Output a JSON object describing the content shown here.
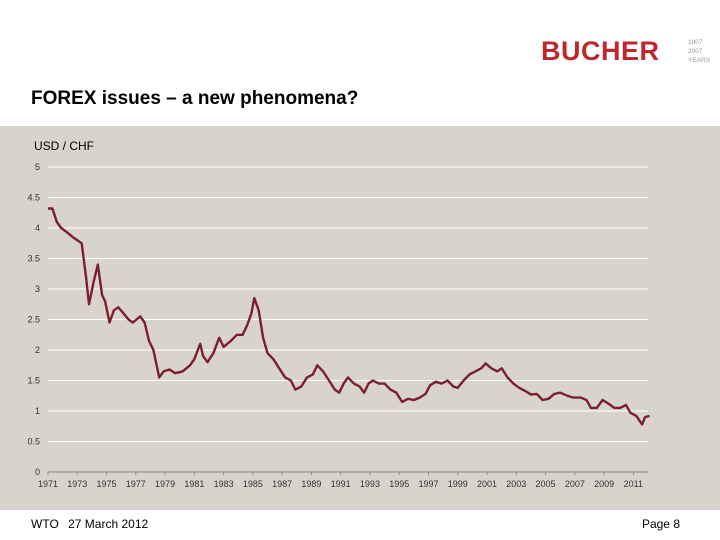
{
  "header": {
    "logo_text": "BUCHER",
    "logo_badge_lines": [
      "1807",
      "2007",
      "YEARS"
    ],
    "title": "FOREX issues – a new phenomena?"
  },
  "footer": {
    "org": "WTO",
    "date": "27 March 2012",
    "page": "Page 8"
  },
  "colors": {
    "line": "#7b1f2b",
    "logo": "#c0272d",
    "panel": "#d8d4cc",
    "grid": "#ffffff"
  },
  "chart_data": {
    "type": "line",
    "title": "USD / CHF",
    "xlabel": "",
    "ylabel": "",
    "ylim": [
      0,
      5
    ],
    "xlim": [
      1971,
      2012
    ],
    "grid": true,
    "legend": "none",
    "yticks": [
      "0",
      "0.5",
      "1",
      "1.5",
      "2",
      "2.5",
      "3",
      "3.5",
      "4",
      "4.5",
      "5"
    ],
    "xticks": [
      "1971",
      "1973",
      "1975",
      "1977",
      "1979",
      "1981",
      "1983",
      "1985",
      "1987",
      "1989",
      "1991",
      "1993",
      "1995",
      "1997",
      "1999",
      "2001",
      "2003",
      "2005",
      "2007",
      "2009",
      "2011"
    ],
    "series": [
      {
        "values": [
          [
            1971.0,
            4.32
          ],
          [
            1971.3,
            4.32
          ],
          [
            1971.6,
            4.1
          ],
          [
            1971.9,
            4.0
          ],
          [
            1972.3,
            3.93
          ],
          [
            1972.7,
            3.85
          ],
          [
            1973.0,
            3.8
          ],
          [
            1973.3,
            3.75
          ],
          [
            1973.6,
            3.2
          ],
          [
            1973.8,
            2.75
          ],
          [
            1974.1,
            3.1
          ],
          [
            1974.4,
            3.4
          ],
          [
            1974.7,
            2.9
          ],
          [
            1974.9,
            2.8
          ],
          [
            1975.2,
            2.45
          ],
          [
            1975.5,
            2.65
          ],
          [
            1975.8,
            2.7
          ],
          [
            1976.1,
            2.62
          ],
          [
            1976.5,
            2.5
          ],
          [
            1976.8,
            2.45
          ],
          [
            1977.3,
            2.55
          ],
          [
            1977.6,
            2.45
          ],
          [
            1977.9,
            2.15
          ],
          [
            1978.2,
            2.0
          ],
          [
            1978.6,
            1.55
          ],
          [
            1978.9,
            1.65
          ],
          [
            1979.3,
            1.68
          ],
          [
            1979.7,
            1.62
          ],
          [
            1980.2,
            1.65
          ],
          [
            1980.7,
            1.75
          ],
          [
            1981.0,
            1.85
          ],
          [
            1981.4,
            2.1
          ],
          [
            1981.6,
            1.9
          ],
          [
            1981.9,
            1.8
          ],
          [
            1982.3,
            1.95
          ],
          [
            1982.7,
            2.2
          ],
          [
            1983.0,
            2.05
          ],
          [
            1983.5,
            2.15
          ],
          [
            1983.9,
            2.25
          ],
          [
            1984.3,
            2.25
          ],
          [
            1984.6,
            2.4
          ],
          [
            1984.9,
            2.6
          ],
          [
            1985.1,
            2.85
          ],
          [
            1985.4,
            2.65
          ],
          [
            1985.7,
            2.2
          ],
          [
            1986.0,
            1.95
          ],
          [
            1986.4,
            1.85
          ],
          [
            1986.8,
            1.7
          ],
          [
            1987.2,
            1.55
          ],
          [
            1987.6,
            1.5
          ],
          [
            1987.9,
            1.35
          ],
          [
            1988.3,
            1.4
          ],
          [
            1988.7,
            1.55
          ],
          [
            1989.1,
            1.6
          ],
          [
            1989.4,
            1.75
          ],
          [
            1989.8,
            1.65
          ],
          [
            1990.2,
            1.5
          ],
          [
            1990.6,
            1.35
          ],
          [
            1990.9,
            1.3
          ],
          [
            1991.2,
            1.45
          ],
          [
            1991.5,
            1.55
          ],
          [
            1991.9,
            1.45
          ],
          [
            1992.3,
            1.4
          ],
          [
            1992.6,
            1.3
          ],
          [
            1992.9,
            1.45
          ],
          [
            1993.2,
            1.5
          ],
          [
            1993.6,
            1.45
          ],
          [
            1994.0,
            1.45
          ],
          [
            1994.4,
            1.35
          ],
          [
            1994.8,
            1.3
          ],
          [
            1995.2,
            1.15
          ],
          [
            1995.6,
            1.2
          ],
          [
            1996.0,
            1.18
          ],
          [
            1996.4,
            1.22
          ],
          [
            1996.8,
            1.28
          ],
          [
            1997.1,
            1.42
          ],
          [
            1997.5,
            1.48
          ],
          [
            1997.9,
            1.45
          ],
          [
            1998.3,
            1.5
          ],
          [
            1998.7,
            1.4
          ],
          [
            1999.0,
            1.38
          ],
          [
            1999.4,
            1.5
          ],
          [
            1999.8,
            1.6
          ],
          [
            2000.2,
            1.65
          ],
          [
            2000.6,
            1.7
          ],
          [
            2000.9,
            1.78
          ],
          [
            2001.3,
            1.7
          ],
          [
            2001.7,
            1.65
          ],
          [
            2002.0,
            1.7
          ],
          [
            2002.4,
            1.55
          ],
          [
            2002.8,
            1.45
          ],
          [
            2003.2,
            1.38
          ],
          [
            2003.6,
            1.33
          ],
          [
            2004.0,
            1.27
          ],
          [
            2004.4,
            1.28
          ],
          [
            2004.8,
            1.18
          ],
          [
            2005.2,
            1.2
          ],
          [
            2005.6,
            1.28
          ],
          [
            2006.0,
            1.3
          ],
          [
            2006.5,
            1.25
          ],
          [
            2006.9,
            1.22
          ],
          [
            2007.4,
            1.22
          ],
          [
            2007.8,
            1.18
          ],
          [
            2008.1,
            1.05
          ],
          [
            2008.5,
            1.05
          ],
          [
            2008.9,
            1.18
          ],
          [
            2009.3,
            1.12
          ],
          [
            2009.7,
            1.05
          ],
          [
            2010.1,
            1.05
          ],
          [
            2010.5,
            1.1
          ],
          [
            2010.8,
            0.97
          ],
          [
            2011.2,
            0.92
          ],
          [
            2011.6,
            0.78
          ],
          [
            2011.8,
            0.9
          ],
          [
            2012.1,
            0.92
          ]
        ]
      }
    ]
  }
}
